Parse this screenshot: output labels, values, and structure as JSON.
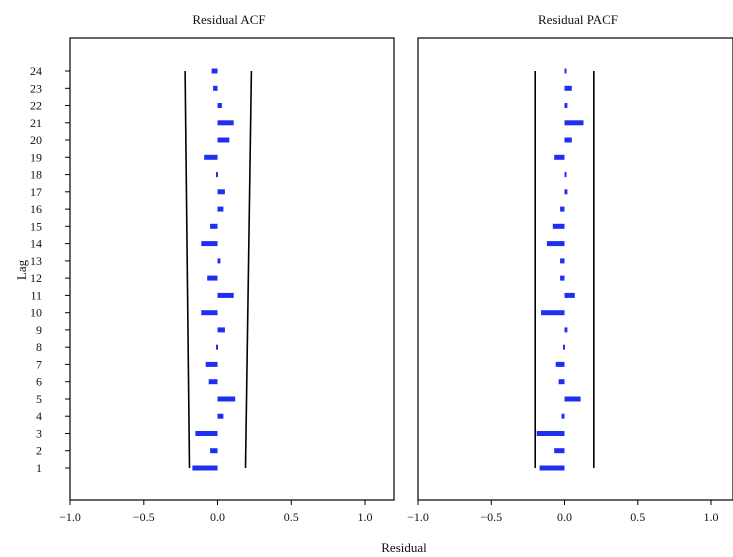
{
  "chart_data": [
    {
      "type": "bar",
      "orientation": "horizontal",
      "title": "Residual ACF",
      "xlabel": "Residual",
      "ylabel": "Lag",
      "xlim": [
        -1.0,
        1.15
      ],
      "ylim": [
        0,
        25.5
      ],
      "x_ticks": [
        "−1.0",
        "−0.5",
        "0.0",
        "0.5",
        "1.0"
      ],
      "x_tick_values": [
        -1.0,
        -0.5,
        0.0,
        0.5,
        1.0
      ],
      "lags": [
        1,
        2,
        3,
        4,
        5,
        6,
        7,
        8,
        9,
        10,
        11,
        12,
        13,
        14,
        15,
        16,
        17,
        18,
        19,
        20,
        21,
        22,
        23,
        24
      ],
      "values": [
        -0.17,
        -0.05,
        -0.15,
        0.04,
        0.12,
        -0.06,
        -0.08,
        -0.01,
        0.05,
        -0.11,
        0.11,
        -0.07,
        0.02,
        -0.11,
        -0.05,
        0.04,
        0.05,
        -0.01,
        -0.09,
        0.08,
        0.11,
        0.03,
        -0.03,
        -0.04
      ],
      "confidence_band": {
        "lower": [
          [
            1,
            -0.19
          ],
          [
            24,
            -0.22
          ]
        ],
        "upper": [
          [
            1,
            0.19
          ],
          [
            24,
            0.23
          ]
        ]
      },
      "grid": false
    },
    {
      "type": "bar",
      "orientation": "horizontal",
      "title": "Residual PACF",
      "xlabel": "Residual",
      "ylabel": "Lag",
      "xlim": [
        -1.0,
        1.15
      ],
      "ylim": [
        0,
        25.5
      ],
      "x_ticks": [
        "−1.0",
        "−0.5",
        "0.0",
        "0.5",
        "1.0"
      ],
      "x_tick_values": [
        -1.0,
        -0.5,
        0.0,
        0.5,
        1.0
      ],
      "lags": [
        1,
        2,
        3,
        4,
        5,
        6,
        7,
        8,
        9,
        10,
        11,
        12,
        13,
        14,
        15,
        16,
        17,
        18,
        19,
        20,
        21,
        22,
        23,
        24
      ],
      "values": [
        -0.17,
        -0.07,
        -0.19,
        -0.02,
        0.11,
        -0.04,
        -0.06,
        -0.01,
        0.02,
        -0.16,
        0.07,
        -0.03,
        -0.03,
        -0.12,
        -0.08,
        -0.03,
        0.02,
        0.0,
        -0.07,
        0.05,
        0.13,
        0.02,
        0.05,
        0.0
      ],
      "confidence_band": {
        "lower": [
          [
            1,
            -0.2
          ],
          [
            24,
            -0.2
          ]
        ],
        "upper": [
          [
            1,
            0.2
          ],
          [
            24,
            0.2
          ]
        ]
      },
      "grid": false
    }
  ]
}
